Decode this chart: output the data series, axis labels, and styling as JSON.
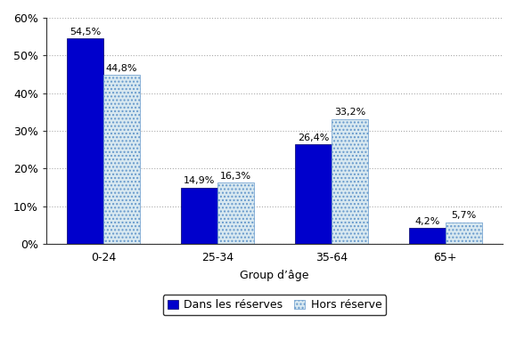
{
  "categories": [
    "0-24",
    "25-34",
    "35-64",
    "65+"
  ],
  "series": [
    {
      "name": "Dans les réserves",
      "values": [
        54.5,
        14.9,
        26.4,
        4.2
      ],
      "color": "#0000CC",
      "hatch": null
    },
    {
      "name": "Hors réserve",
      "values": [
        44.8,
        16.3,
        33.2,
        5.7
      ],
      "color": "#ffffff",
      "hatch": "....",
      "edgecolor": "#6699CC"
    }
  ],
  "label_texts": [
    [
      "54,5%",
      "44,8%"
    ],
    [
      "14,9%",
      "16,3%"
    ],
    [
      "26,4%",
      "33,2%"
    ],
    [
      "4,2%",
      "5,7%"
    ]
  ],
  "label_values": [
    [
      54.5,
      44.8
    ],
    [
      14.9,
      16.3
    ],
    [
      26.4,
      33.2
    ],
    [
      4.2,
      5.7
    ]
  ],
  "xlabel": "Group d’âge",
  "ylim": [
    0,
    60
  ],
  "yticks": [
    0,
    10,
    20,
    30,
    40,
    50,
    60
  ],
  "ytick_labels": [
    "0%",
    "10%",
    "20%",
    "30%",
    "40%",
    "50%",
    "60%"
  ],
  "bar_width": 0.32,
  "grid_color": "#aaaaaa",
  "background_color": "#ffffff",
  "font_size_labels": 8,
  "font_size_axis": 9,
  "font_size_legend": 9
}
